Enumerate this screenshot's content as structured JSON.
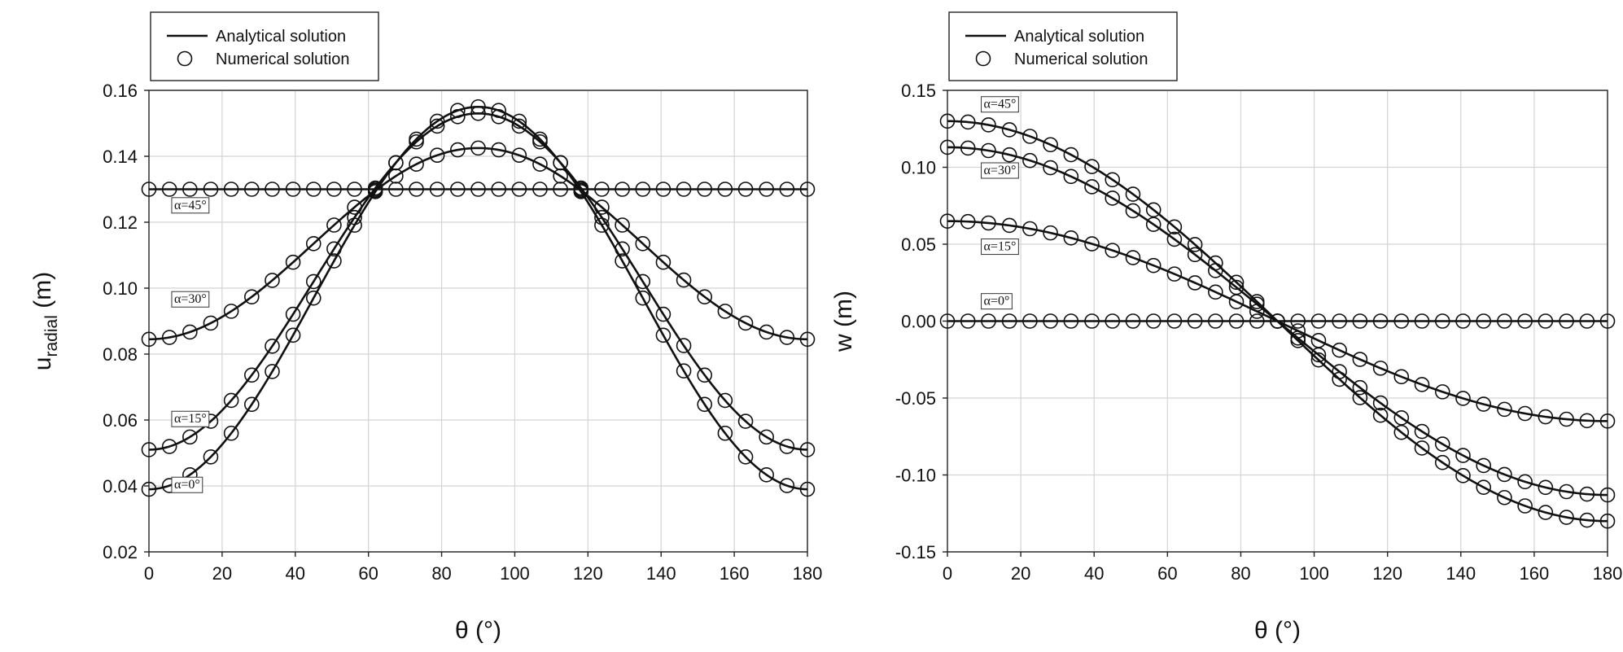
{
  "chart_data": [
    {
      "type": "line",
      "ylabel_main": "u",
      "ylabel_sub": "radial",
      "ylabel_unit": " (m)",
      "xlabel": "θ (°)",
      "xlim": [
        0,
        180
      ],
      "ylim": [
        0.02,
        0.16
      ],
      "xticks": [
        0,
        20,
        40,
        60,
        80,
        100,
        120,
        140,
        160,
        180
      ],
      "yticks": [
        0.02,
        0.04,
        0.06,
        0.08,
        0.1,
        0.12,
        0.14,
        0.16
      ],
      "ytick_labels": [
        "0.02",
        "0.04",
        "0.06",
        "0.08",
        "0.10",
        "0.12",
        "0.14",
        "0.16"
      ],
      "grid": true,
      "legend": {
        "position": "top-left",
        "entries": [
          "Analytical solution",
          "Numerical solution"
        ]
      },
      "series": [
        {
          "label": "α=0°",
          "curve": {
            "c": 0.097,
            "a": 0.058
          },
          "label_x": 6,
          "label_y": 0.0392
        },
        {
          "label": "α=15°",
          "curve": {
            "c": 0.102,
            "a": 0.051
          },
          "label_x": 6,
          "label_y": 0.0592
        },
        {
          "label": "α=30°",
          "curve": {
            "c": 0.1135,
            "a": 0.029
          },
          "label_x": 6,
          "label_y": 0.0955
        },
        {
          "label": "α=45°",
          "curve": {
            "c": 0.13,
            "a": 0.0
          },
          "label_x": 6,
          "label_y": 0.124
        }
      ],
      "markers_x": [
        0,
        5.6,
        11.2,
        16.9,
        22.5,
        28.1,
        33.7,
        39.4,
        45.0,
        50.6,
        56.2,
        61.9,
        67.5,
        73.1,
        78.8,
        84.4,
        90.0,
        95.6,
        101.2,
        106.9,
        112.5,
        118.1,
        123.8,
        129.4,
        135.0,
        140.6,
        146.2,
        151.9,
        157.5,
        163.1,
        168.8,
        174.4,
        180
      ]
    },
    {
      "type": "line",
      "ylabel": "w (m)",
      "xlabel": "θ (°)",
      "xlim": [
        0,
        180
      ],
      "ylim": [
        -0.15,
        0.15
      ],
      "xticks": [
        0,
        20,
        40,
        60,
        80,
        100,
        120,
        140,
        160,
        180
      ],
      "yticks": [
        -0.15,
        -0.1,
        -0.05,
        0.0,
        0.05,
        0.1,
        0.15
      ],
      "ytick_labels": [
        "-0.15",
        "-0.10",
        "-0.05",
        "0.00",
        "0.05",
        "0.10",
        "0.15"
      ],
      "grid": true,
      "legend": {
        "position": "top-left",
        "entries": [
          "Analytical solution",
          "Numerical solution"
        ]
      },
      "series": [
        {
          "label": "α=0°",
          "amplitude": 0.0,
          "label_x": 9,
          "label_y": 0.0105
        },
        {
          "label": "α=15°",
          "amplitude": 0.065,
          "label_x": 9,
          "label_y": 0.046
        },
        {
          "label": "α=30°",
          "amplitude": 0.113,
          "label_x": 9,
          "label_y": 0.0955
        },
        {
          "label": "α=45°",
          "amplitude": 0.13,
          "label_x": 9,
          "label_y": 0.1385
        }
      ],
      "markers_x": [
        0,
        5.6,
        11.2,
        16.9,
        22.5,
        28.1,
        33.7,
        39.4,
        45.0,
        50.6,
        56.2,
        61.9,
        67.5,
        73.1,
        78.8,
        84.4,
        90.0,
        95.6,
        101.2,
        106.9,
        112.5,
        118.1,
        123.8,
        129.4,
        135.0,
        140.6,
        146.2,
        151.9,
        157.5,
        163.1,
        168.8,
        174.4,
        180
      ]
    }
  ]
}
